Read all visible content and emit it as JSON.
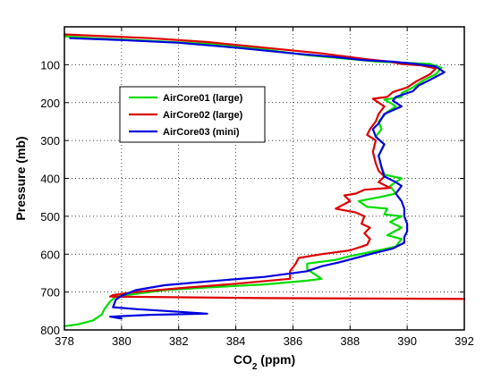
{
  "chart_data": {
    "type": "line",
    "xlabel_main": "CO",
    "xlabel_sub": "2",
    "xlabel_unit": " (ppm)",
    "ylabel": "Pressure (mb)",
    "xlim": [
      378,
      392
    ],
    "ylim": [
      800,
      0
    ],
    "y_inverted": true,
    "xticks": [
      378,
      380,
      382,
      384,
      386,
      388,
      390,
      392
    ],
    "yticks": [
      100,
      200,
      300,
      400,
      500,
      600,
      700,
      800
    ],
    "grid": true,
    "grid_style": "dotted",
    "legend_position": "upper-left inside",
    "series": [
      {
        "name": "AirCore01 (large)",
        "color": "#00dd00",
        "points": [
          [
            378.0,
            25
          ],
          [
            379.0,
            30
          ],
          [
            380.5,
            35
          ],
          [
            383.0,
            45
          ],
          [
            385.0,
            60
          ],
          [
            386.5,
            75
          ],
          [
            388.0,
            85
          ],
          [
            389.0,
            92
          ],
          [
            390.0,
            95
          ],
          [
            390.8,
            98
          ],
          [
            391.2,
            108
          ],
          [
            391.0,
            125
          ],
          [
            390.6,
            140
          ],
          [
            390.2,
            160
          ],
          [
            389.8,
            175
          ],
          [
            389.8,
            185
          ],
          [
            389.2,
            192
          ],
          [
            389.4,
            200
          ],
          [
            389.6,
            210
          ],
          [
            389.3,
            225
          ],
          [
            389.0,
            250
          ],
          [
            389.1,
            270
          ],
          [
            388.9,
            290
          ],
          [
            389.2,
            310
          ],
          [
            389.0,
            340
          ],
          [
            389.1,
            370
          ],
          [
            389.2,
            390
          ],
          [
            389.5,
            395
          ],
          [
            389.8,
            400
          ],
          [
            389.4,
            420
          ],
          [
            389.6,
            440
          ],
          [
            389.0,
            450
          ],
          [
            388.3,
            460
          ],
          [
            388.6,
            475
          ],
          [
            389.3,
            480
          ],
          [
            389.2,
            495
          ],
          [
            389.8,
            500
          ],
          [
            389.4,
            515
          ],
          [
            389.8,
            530
          ],
          [
            389.3,
            550
          ],
          [
            389.8,
            560
          ],
          [
            389.6,
            580
          ],
          [
            389.0,
            590
          ],
          [
            388.0,
            605
          ],
          [
            387.5,
            615
          ],
          [
            386.5,
            625
          ],
          [
            386.5,
            640
          ],
          [
            386.8,
            655
          ],
          [
            387.0,
            665
          ],
          [
            386.5,
            670
          ],
          [
            385.0,
            680
          ],
          [
            383.0,
            688
          ],
          [
            381.5,
            695
          ],
          [
            380.5,
            705
          ],
          [
            379.8,
            712
          ],
          [
            379.6,
            725
          ],
          [
            379.4,
            745
          ],
          [
            379.3,
            760
          ],
          [
            379.0,
            775
          ],
          [
            378.5,
            785
          ],
          [
            378.0,
            790
          ]
        ]
      },
      {
        "name": "AirCore02 (large)",
        "color": "#dd0000",
        "points": [
          [
            378.0,
            20
          ],
          [
            379.5,
            25
          ],
          [
            381.0,
            30
          ],
          [
            383.0,
            40
          ],
          [
            385.0,
            55
          ],
          [
            387.0,
            70
          ],
          [
            388.5,
            85
          ],
          [
            389.4,
            92
          ],
          [
            389.8,
            98
          ],
          [
            390.5,
            102
          ],
          [
            391.0,
            110
          ],
          [
            390.8,
            125
          ],
          [
            390.3,
            145
          ],
          [
            390.0,
            160
          ],
          [
            389.5,
            172
          ],
          [
            389.3,
            185
          ],
          [
            388.8,
            190
          ],
          [
            389.0,
            200
          ],
          [
            389.2,
            210
          ],
          [
            389.0,
            230
          ],
          [
            388.9,
            250
          ],
          [
            388.7,
            270
          ],
          [
            388.6,
            285
          ],
          [
            388.9,
            300
          ],
          [
            388.8,
            330
          ],
          [
            388.9,
            360
          ],
          [
            389.0,
            380
          ],
          [
            389.2,
            395
          ],
          [
            389.0,
            410
          ],
          [
            389.4,
            425
          ],
          [
            388.5,
            430
          ],
          [
            388.2,
            440
          ],
          [
            387.8,
            445
          ],
          [
            388.0,
            460
          ],
          [
            387.5,
            480
          ],
          [
            388.2,
            490
          ],
          [
            388.5,
            500
          ],
          [
            388.4,
            520
          ],
          [
            388.7,
            530
          ],
          [
            388.5,
            545
          ],
          [
            388.7,
            560
          ],
          [
            388.6,
            575
          ],
          [
            388.0,
            590
          ],
          [
            387.0,
            600
          ],
          [
            386.2,
            610
          ],
          [
            386.1,
            625
          ],
          [
            385.9,
            645
          ],
          [
            385.9,
            665
          ],
          [
            384.0,
            678
          ],
          [
            382.0,
            690
          ],
          [
            380.5,
            700
          ],
          [
            379.7,
            708
          ],
          [
            379.6,
            712
          ],
          [
            385.0,
            716
          ],
          [
            392.0,
            718
          ],
          [
            392.0,
            719
          ]
        ]
      },
      {
        "name": "AirCore03 (mini)",
        "color": "#0000dd",
        "points": [
          [
            378.2,
            30
          ],
          [
            380.0,
            35
          ],
          [
            382.0,
            42
          ],
          [
            384.0,
            55
          ],
          [
            386.0,
            70
          ],
          [
            387.5,
            80
          ],
          [
            388.5,
            88
          ],
          [
            389.5,
            92
          ],
          [
            390.3,
            98
          ],
          [
            391.0,
            105
          ],
          [
            391.3,
            120
          ],
          [
            390.8,
            140
          ],
          [
            390.4,
            155
          ],
          [
            390.2,
            170
          ],
          [
            389.6,
            185
          ],
          [
            389.5,
            195
          ],
          [
            389.8,
            210
          ],
          [
            389.2,
            230
          ],
          [
            389.0,
            255
          ],
          [
            388.8,
            270
          ],
          [
            388.9,
            290
          ],
          [
            389.2,
            310
          ],
          [
            389.0,
            340
          ],
          [
            389.1,
            370
          ],
          [
            389.2,
            395
          ],
          [
            389.6,
            410
          ],
          [
            389.8,
            420
          ],
          [
            389.6,
            440
          ],
          [
            389.8,
            460
          ],
          [
            389.9,
            480
          ],
          [
            389.9,
            500
          ],
          [
            390.0,
            520
          ],
          [
            390.0,
            540
          ],
          [
            389.9,
            555
          ],
          [
            389.9,
            570
          ],
          [
            389.5,
            585
          ],
          [
            388.8,
            598
          ],
          [
            388.2,
            610
          ],
          [
            387.6,
            622
          ],
          [
            387.0,
            632
          ],
          [
            386.5,
            645
          ],
          [
            385.0,
            660
          ],
          [
            383.0,
            672
          ],
          [
            381.5,
            682
          ],
          [
            380.5,
            695
          ],
          [
            380.0,
            710
          ],
          [
            379.8,
            720
          ],
          [
            379.7,
            740
          ],
          [
            380.5,
            745
          ],
          [
            382.0,
            752
          ],
          [
            383.0,
            757
          ],
          [
            381.0,
            760
          ],
          [
            379.6,
            765
          ],
          [
            380.0,
            770
          ]
        ]
      }
    ]
  }
}
